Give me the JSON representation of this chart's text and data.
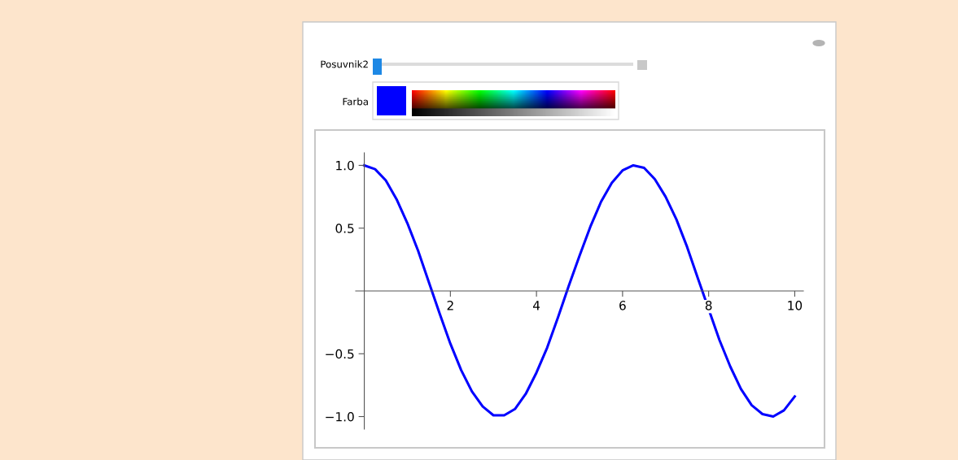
{
  "chart_data": {
    "type": "line",
    "x": [
      0,
      0.25,
      0.5,
      0.75,
      1,
      1.25,
      1.5,
      1.75,
      2,
      2.25,
      2.5,
      2.75,
      3,
      3.25,
      3.5,
      3.75,
      4,
      4.25,
      4.5,
      4.75,
      5,
      5.25,
      5.5,
      5.75,
      6,
      6.25,
      6.5,
      6.75,
      7,
      7.25,
      7.5,
      7.75,
      8.25,
      8.5,
      8.75,
      9,
      9.25,
      9.5,
      9.75,
      10
    ],
    "series": [
      {
        "color": "#0000ff",
        "values": [
          1.0,
          0.97,
          0.88,
          0.73,
          0.54,
          0.32,
          0.07,
          -0.18,
          -0.42,
          -0.63,
          -0.8,
          -0.92,
          -0.99,
          -0.99,
          -0.94,
          -0.82,
          -0.65,
          -0.45,
          -0.21,
          0.04,
          0.28,
          0.51,
          0.71,
          0.86,
          0.96,
          1.0,
          0.98,
          0.89,
          0.75,
          0.57,
          0.35,
          0.1,
          -0.39,
          -0.6,
          -0.78,
          -0.91,
          -0.98,
          -1.0,
          -0.95,
          -0.84
        ]
      }
    ],
    "xlim": [
      -0.2,
      10.2
    ],
    "ylim": [
      -1.1,
      1.1
    ],
    "xticks": [
      2,
      4,
      6,
      8,
      10
    ],
    "yticks": [
      {
        "value": -1.0,
        "label": "−1.0"
      },
      {
        "value": -0.5,
        "label": "−0.5"
      },
      {
        "value": 0.5,
        "label": "0.5"
      },
      {
        "value": 1.0,
        "label": "1.0"
      }
    ],
    "annotations": [
      "Posuvnik2",
      "Farba"
    ],
    "grid": false,
    "legend": false,
    "marker": "none",
    "line_style": "solid"
  }
}
